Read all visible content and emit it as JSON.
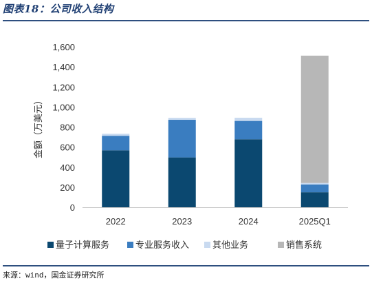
{
  "figure": {
    "title": "图表18：公司收入结构",
    "source": "来源：wind，国金证券研究所"
  },
  "chart_data": {
    "type": "bar",
    "stacked": true,
    "categories": [
      "2022",
      "2023",
      "2024",
      "2025Q1"
    ],
    "series": [
      {
        "name": "量子计算服务",
        "color": "#0b4870",
        "values": [
          568,
          497,
          678,
          150
        ]
      },
      {
        "name": "专业服务收入",
        "color": "#3a7dc0",
        "values": [
          145,
          375,
          183,
          77
        ]
      },
      {
        "name": "其他业务",
        "color": "#c9daf0",
        "values": [
          20,
          20,
          32,
          15
        ]
      },
      {
        "name": "销售系统",
        "color": "#b7b7b7",
        "values": [
          0,
          0,
          0,
          1270
        ]
      }
    ],
    "ylabel": "金额（万美元）",
    "ylim": [
      0,
      1600
    ],
    "yticks": [
      "0",
      "200",
      "400",
      "600",
      "800",
      "1,000",
      "1,200",
      "1,400",
      "1,600"
    ],
    "grid": false,
    "legend_position": "bottom"
  }
}
